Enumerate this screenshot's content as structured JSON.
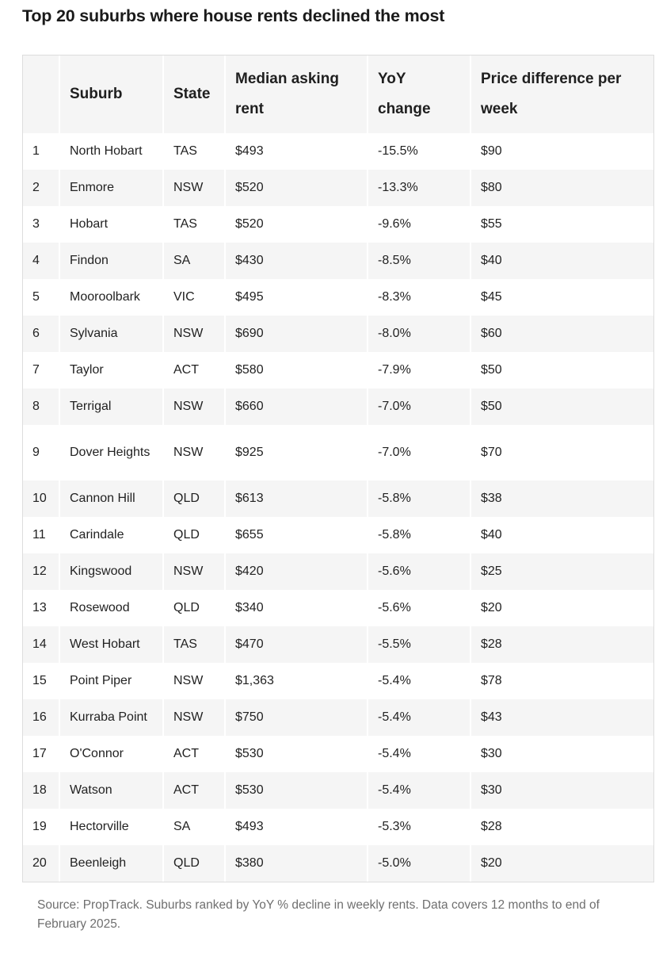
{
  "title": "Top 20 suburbs where house rents declined the most",
  "table": {
    "headers": [
      "",
      "Suburb",
      "State",
      "Median asking rent",
      "YoY change",
      "Price difference per week"
    ],
    "rows": [
      [
        "1",
        "North Hobart",
        "TAS",
        "$493",
        "-15.5%",
        "$90"
      ],
      [
        "2",
        "Enmore",
        "NSW",
        "$520",
        "-13.3%",
        "$80"
      ],
      [
        "3",
        "Hobart",
        "TAS",
        "$520",
        "-9.6%",
        "$55"
      ],
      [
        "4",
        "Findon",
        "SA",
        "$430",
        "-8.5%",
        "$40"
      ],
      [
        "5",
        "Mooroolbark",
        "VIC",
        "$495",
        "-8.3%",
        "$45"
      ],
      [
        "6",
        "Sylvania",
        "NSW",
        "$690",
        "-8.0%",
        "$60"
      ],
      [
        "7",
        "Taylor",
        "ACT",
        "$580",
        "-7.9%",
        "$50"
      ],
      [
        "8",
        "Terrigal",
        "NSW",
        "$660",
        "-7.0%",
        "$50"
      ],
      [
        "9",
        "Dover Heights",
        "NSW",
        "$925",
        "-7.0%",
        "$70"
      ],
      [
        "10",
        "Cannon Hill",
        "QLD",
        "$613",
        "-5.8%",
        "$38"
      ],
      [
        "11",
        "Carindale",
        "QLD",
        "$655",
        "-5.8%",
        "$40"
      ],
      [
        "12",
        "Kingswood",
        "NSW",
        "$420",
        "-5.6%",
        "$25"
      ],
      [
        "13",
        "Rosewood",
        "QLD",
        "$340",
        "-5.6%",
        "$20"
      ],
      [
        "14",
        "West Hobart",
        "TAS",
        "$470",
        "-5.5%",
        "$28"
      ],
      [
        "15",
        "Point Piper",
        "NSW",
        "$1,363",
        "-5.4%",
        "$78"
      ],
      [
        "16",
        "Kurraba Point",
        "NSW",
        "$750",
        "-5.4%",
        "$43"
      ],
      [
        "17",
        "O'Connor",
        "ACT",
        "$530",
        "-5.4%",
        "$30"
      ],
      [
        "18",
        "Watson",
        "ACT",
        "$530",
        "-5.4%",
        "$30"
      ],
      [
        "19",
        "Hectorville",
        "SA",
        "$493",
        "-5.3%",
        "$28"
      ],
      [
        "20",
        "Beenleigh",
        "QLD",
        "$380",
        "-5.0%",
        "$20"
      ]
    ]
  },
  "source": "Source: PropTrack. Suburbs ranked by YoY % decline in weekly rents. Data covers 12 months to end of February 2025."
}
